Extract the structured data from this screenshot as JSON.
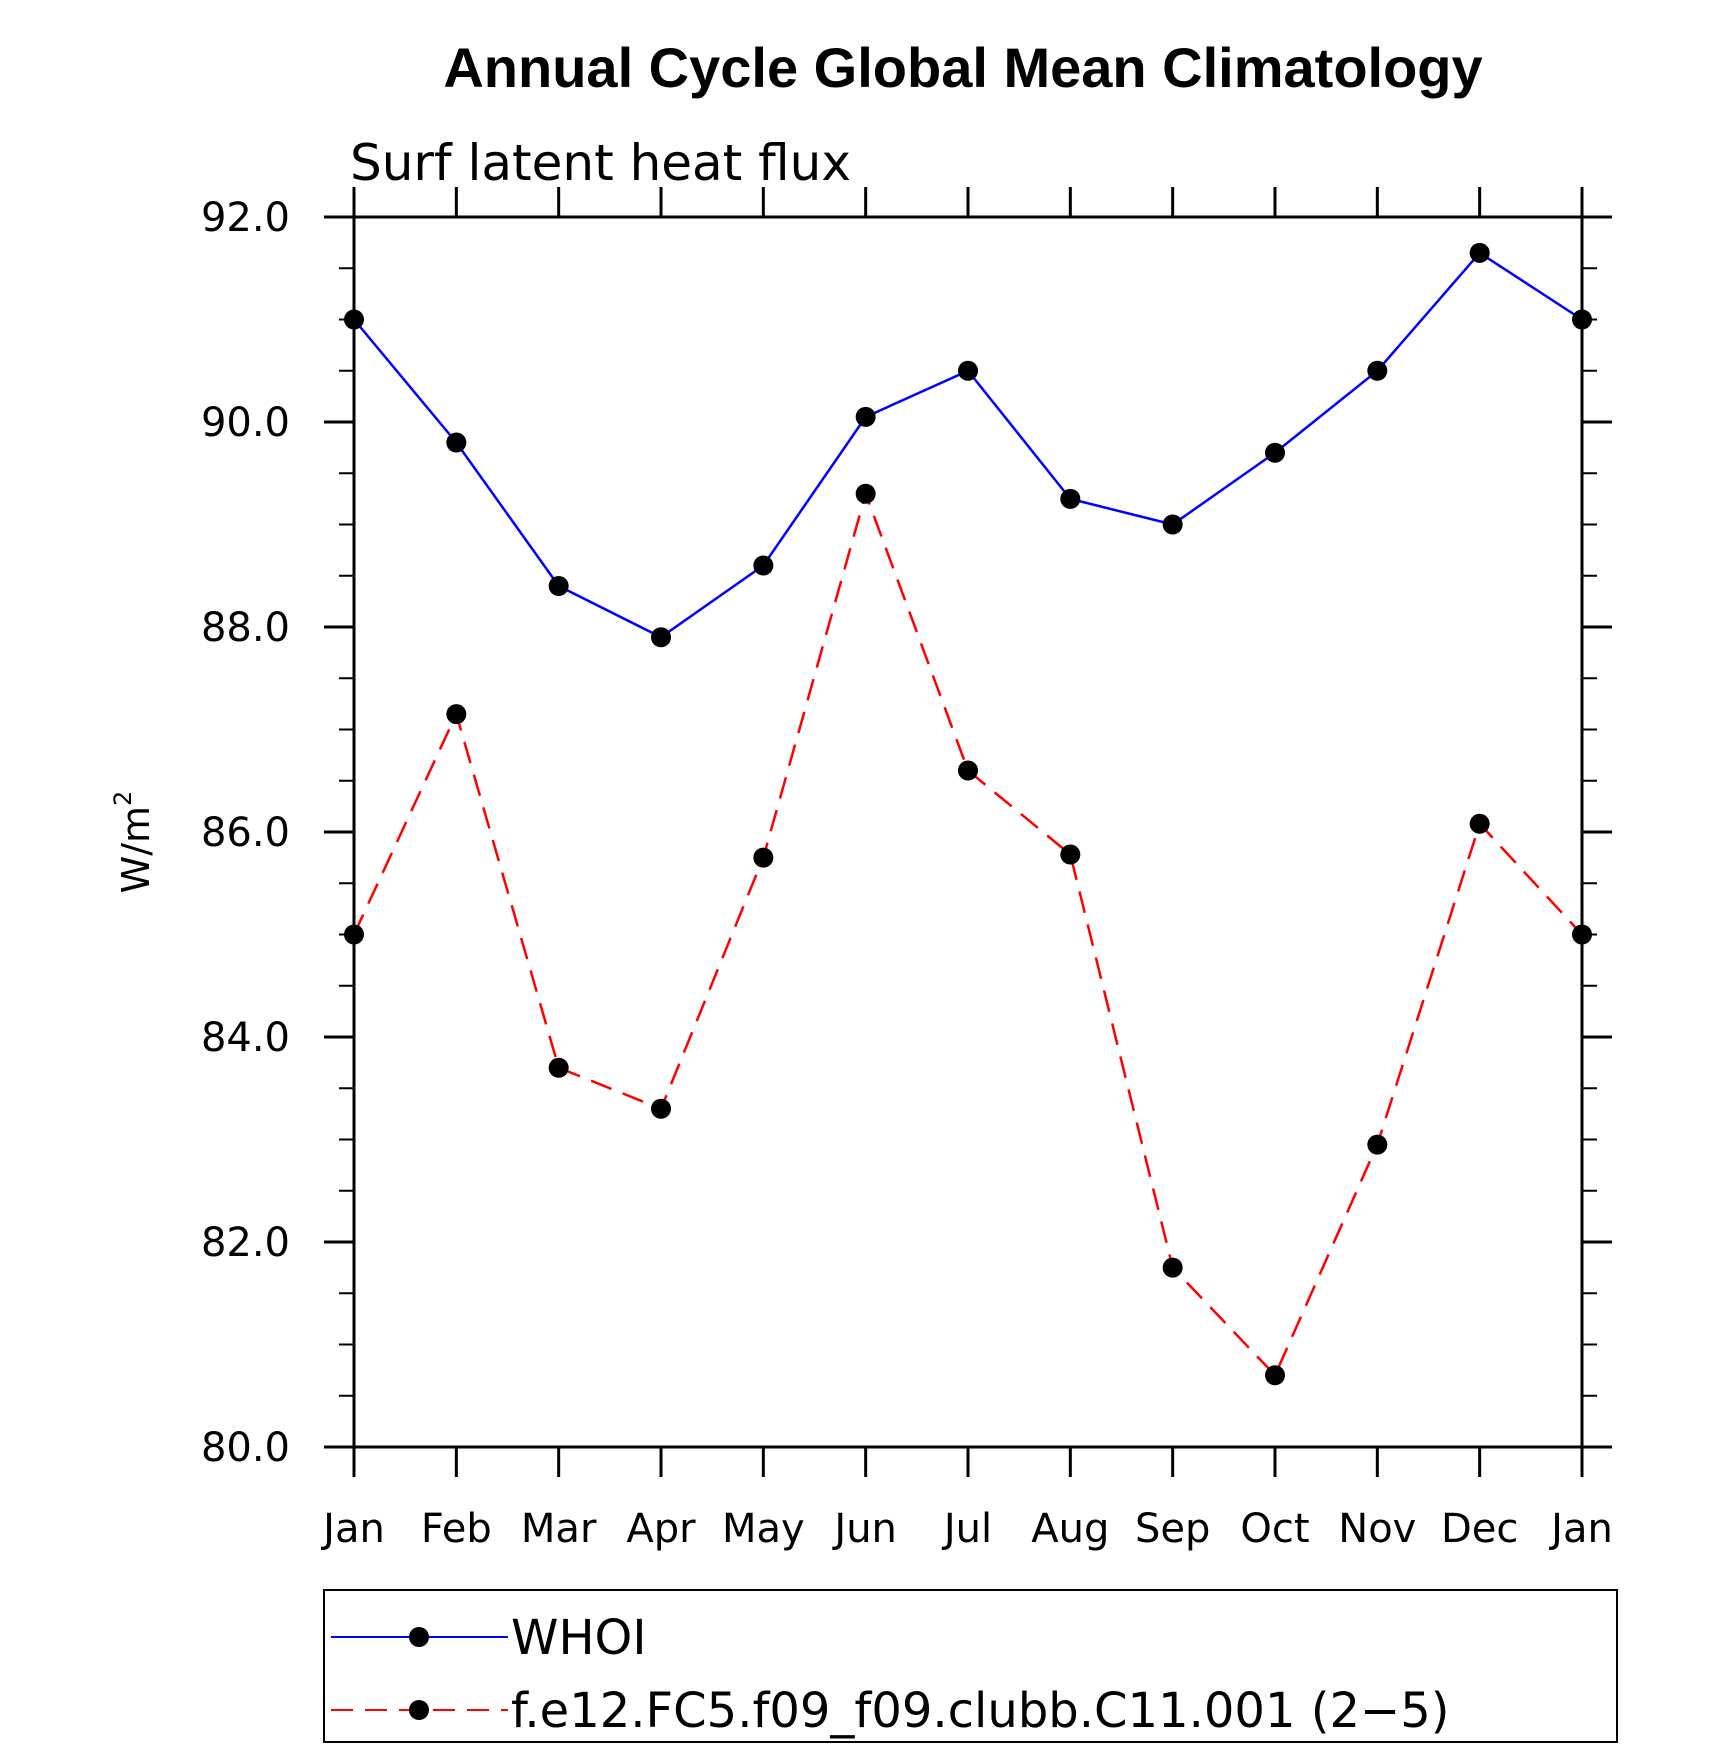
{
  "chart_data": {
    "type": "line",
    "title": "Annual Cycle Global Mean Climatology",
    "subtitle": "Surf latent heat flux",
    "ylabel": "W/m",
    "ylabel_sup": "2",
    "xlabel": "",
    "categories": [
      "Jan",
      "Feb",
      "Mar",
      "Apr",
      "May",
      "Jun",
      "Jul",
      "Aug",
      "Sep",
      "Oct",
      "Nov",
      "Dec",
      "Jan"
    ],
    "ylim": [
      80.0,
      92.0
    ],
    "yticks": [
      "80.0",
      "82.0",
      "84.0",
      "86.0",
      "88.0",
      "90.0",
      "92.0"
    ],
    "grid": false,
    "legend_position": "bottom",
    "series": [
      {
        "name": "WHOI",
        "color": "#0000ff",
        "style": "solid",
        "marker": "filled-circle",
        "values": [
          91.0,
          89.8,
          88.4,
          87.9,
          88.6,
          90.05,
          90.5,
          89.25,
          89.0,
          89.7,
          90.5,
          91.65,
          91.0
        ]
      },
      {
        "name": "f.e12.FC5.f09_f09.clubb.C11.001 (2−5)",
        "color": "#ff0000",
        "style": "dashed",
        "marker": "filled-circle",
        "values": [
          85.0,
          87.15,
          83.7,
          83.3,
          85.75,
          89.3,
          86.6,
          85.78,
          81.75,
          80.7,
          82.95,
          86.08,
          85.0
        ]
      }
    ]
  }
}
